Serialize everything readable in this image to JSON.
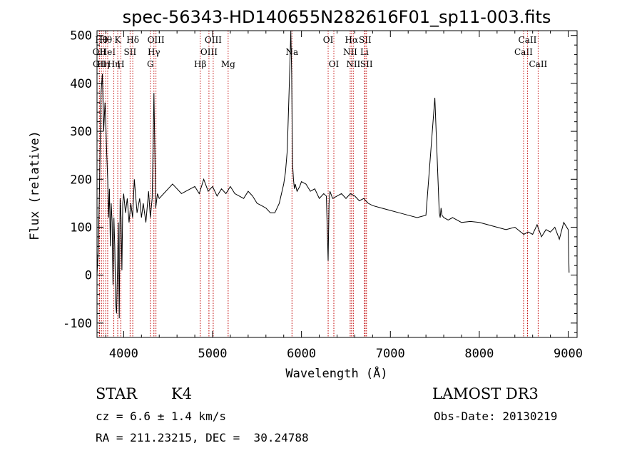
{
  "chart_data": {
    "type": "line",
    "title": "spec-56343-HD140655N282616F01_sp11-003.fits",
    "xlabel": "Wavelength (Å)",
    "ylabel": "Flux (relative)",
    "xlim": [
      3700,
      9100
    ],
    "ylim": [
      -130,
      510
    ],
    "xticks": [
      4000,
      5000,
      6000,
      7000,
      8000,
      9000
    ],
    "yticks": [
      -100,
      0,
      100,
      200,
      300,
      400,
      500
    ],
    "grid": false,
    "series": [
      {
        "name": "flux",
        "x": [
          3700,
          3715,
          3730,
          3745,
          3760,
          3775,
          3790,
          3800,
          3810,
          3820,
          3830,
          3840,
          3850,
          3860,
          3870,
          3880,
          3890,
          3900,
          3910,
          3920,
          3930,
          3940,
          3950,
          3960,
          3970,
          3980,
          3990,
          4000,
          4020,
          4040,
          4060,
          4080,
          4100,
          4120,
          4150,
          4180,
          4200,
          4220,
          4250,
          4280,
          4300,
          4320,
          4340,
          4350,
          4360,
          4380,
          4400,
          4450,
          4500,
          4550,
          4600,
          4650,
          4700,
          4750,
          4800,
          4850,
          4900,
          4950,
          5000,
          5050,
          5100,
          5150,
          5200,
          5250,
          5300,
          5350,
          5400,
          5450,
          5500,
          5550,
          5600,
          5650,
          5700,
          5750,
          5800,
          5820,
          5840,
          5860,
          5870,
          5880,
          5890,
          5895,
          5900,
          5905,
          5910,
          5920,
          5930,
          5950,
          5980,
          6000,
          6050,
          6100,
          6150,
          6200,
          6250,
          6280,
          6300,
          6310,
          6320,
          6350,
          6400,
          6450,
          6500,
          6550,
          6600,
          6650,
          6700,
          6750,
          6800,
          6900,
          7000,
          7100,
          7200,
          7300,
          7400,
          7500,
          7550,
          7560,
          7570,
          7580,
          7600,
          7650,
          7700,
          7800,
          7900,
          8000,
          8100,
          8200,
          8300,
          8400,
          8500,
          8550,
          8600,
          8650,
          8700,
          8750,
          8800,
          8850,
          8900,
          8950,
          9000,
          9010
        ],
        "values": [
          0,
          60,
          200,
          380,
          420,
          300,
          360,
          310,
          250,
          200,
          120,
          180,
          60,
          150,
          110,
          -20,
          120,
          60,
          -60,
          -80,
          10,
          110,
          -90,
          160,
          120,
          10,
          150,
          170,
          130,
          160,
          110,
          150,
          120,
          200,
          130,
          160,
          120,
          150,
          110,
          175,
          120,
          160,
          380,
          270,
          140,
          170,
          160,
          170,
          180,
          190,
          180,
          170,
          175,
          180,
          185,
          170,
          200,
          175,
          185,
          165,
          180,
          170,
          185,
          170,
          165,
          160,
          175,
          165,
          150,
          145,
          140,
          130,
          130,
          150,
          190,
          215,
          260,
          380,
          440,
          510,
          420,
          300,
          230,
          215,
          200,
          180,
          190,
          175,
          185,
          195,
          190,
          175,
          180,
          160,
          170,
          165,
          30,
          150,
          175,
          160,
          165,
          170,
          160,
          170,
          165,
          155,
          160,
          150,
          145,
          140,
          135,
          130,
          125,
          120,
          125,
          370,
          130,
          120,
          140,
          125,
          120,
          115,
          120,
          110,
          112,
          110,
          105,
          100,
          95,
          100,
          85,
          90,
          85,
          105,
          80,
          95,
          90,
          100,
          75,
          110,
          95,
          5
        ]
      }
    ],
    "lines": [
      {
        "x": 3726,
        "label": "OII",
        "row": 1
      },
      {
        "x": 3729,
        "label": "OII",
        "row": 2
      },
      {
        "x": 3750,
        "label": "Hθ",
        "row": 0
      },
      {
        "x": 3771,
        "label": "Hη",
        "row": 2
      },
      {
        "x": 3798,
        "label": "Hθ",
        "row": 0
      },
      {
        "x": 3820,
        "label": "HeI",
        "row": 1
      },
      {
        "x": 3889,
        "label": "Hη",
        "row": 2
      },
      {
        "x": 3933,
        "label": "K",
        "row": 0
      },
      {
        "x": 3968,
        "label": "H",
        "row": 2
      },
      {
        "x": 4072,
        "label": "SII",
        "row": 1
      },
      {
        "x": 4102,
        "label": "Hδ",
        "row": 0
      },
      {
        "x": 4300,
        "label": "G",
        "row": 2
      },
      {
        "x": 4340,
        "label": "Hγ",
        "row": 1
      },
      {
        "x": 4363,
        "label": "OIII",
        "row": 0
      },
      {
        "x": 4861,
        "label": "Hβ",
        "row": 2
      },
      {
        "x": 4959,
        "label": "OIII",
        "row": 1
      },
      {
        "x": 5007,
        "label": "OIII",
        "row": 0
      },
      {
        "x": 5175,
        "label": "Mg",
        "row": 2
      },
      {
        "x": 5893,
        "label": "Na",
        "row": 1
      },
      {
        "x": 6300,
        "label": "OI",
        "row": 0
      },
      {
        "x": 6364,
        "label": "OI",
        "row": 2
      },
      {
        "x": 6548,
        "label": "NII",
        "row": 1
      },
      {
        "x": 6563,
        "label": "Hα",
        "row": 0
      },
      {
        "x": 6583,
        "label": "NII",
        "row": 2
      },
      {
        "x": 6708,
        "label": "Li",
        "row": 1
      },
      {
        "x": 6716,
        "label": "SII",
        "row": 0
      },
      {
        "x": 6731,
        "label": "SII",
        "row": 2
      },
      {
        "x": 8498,
        "label": "CaII",
        "row": 1
      },
      {
        "x": 8542,
        "label": "CaII",
        "row": 0
      },
      {
        "x": 8662,
        "label": "CaII",
        "row": 2
      }
    ]
  },
  "info": {
    "class": "STAR",
    "subclass": "K4",
    "survey": "LAMOST DR3",
    "cz": "cz = 6.6 ± 1.4 km/s",
    "obs_date": "Obs-Date: 20130219",
    "coords": "RA = 211.23215, DEC =  30.24788"
  }
}
